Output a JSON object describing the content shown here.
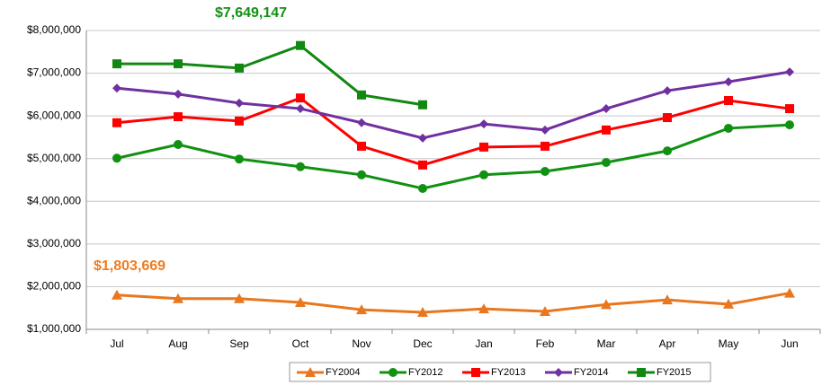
{
  "chart_data": {
    "type": "line",
    "categories": [
      "Jul",
      "Aug",
      "Sep",
      "Oct",
      "Nov",
      "Dec",
      "Jan",
      "Feb",
      "Mar",
      "Apr",
      "May",
      "Jun"
    ],
    "series": [
      {
        "name": "FY2004",
        "color": "#e8771f",
        "marker": "triangle",
        "values": [
          1803669,
          1720000,
          1720000,
          1630000,
          1460000,
          1400000,
          1480000,
          1420000,
          1580000,
          1690000,
          1590000,
          1850000
        ]
      },
      {
        "name": "FY2012",
        "color": "#119111",
        "marker": "circle",
        "values": [
          5010000,
          5330000,
          4990000,
          4810000,
          4620000,
          4300000,
          4620000,
          4700000,
          4910000,
          5180000,
          5710000,
          5790000
        ]
      },
      {
        "name": "FY2013",
        "color": "#ff0000",
        "marker": "square",
        "values": [
          5840000,
          5980000,
          5880000,
          6420000,
          5290000,
          4850000,
          5270000,
          5290000,
          5670000,
          5960000,
          6360000,
          6170000
        ]
      },
      {
        "name": "FY2014",
        "color": "#7030a0",
        "marker": "diamond",
        "values": [
          6650000,
          6510000,
          6300000,
          6170000,
          5840000,
          5480000,
          5810000,
          5670000,
          6170000,
          6590000,
          6800000,
          7030000
        ]
      },
      {
        "name": "FY2015",
        "color": "#118811",
        "marker": "square",
        "values": [
          7220000,
          7220000,
          7120000,
          7649147,
          6490000,
          6260000,
          null,
          null,
          null,
          null,
          null,
          null
        ]
      }
    ],
    "annotations": [
      {
        "text": "$7,649,147",
        "color": "#119111"
      },
      {
        "text": "$1,803,669",
        "color": "#f07b1e"
      }
    ],
    "ylim": [
      1000000,
      8000000
    ],
    "yticks": [
      {
        "value": 1000000,
        "label": "$1,000,000"
      },
      {
        "value": 2000000,
        "label": "$2,000,000"
      },
      {
        "value": 3000000,
        "label": "$3,000,000"
      },
      {
        "value": 4000000,
        "label": "$4,000,000"
      },
      {
        "value": 5000000,
        "label": "$5,000,000"
      },
      {
        "value": 6000000,
        "label": "$6,000,000"
      },
      {
        "value": 7000000,
        "label": "$7,000,000"
      },
      {
        "value": 8000000,
        "label": "$8,000,000"
      }
    ],
    "grid": true,
    "legend": "bottom"
  }
}
